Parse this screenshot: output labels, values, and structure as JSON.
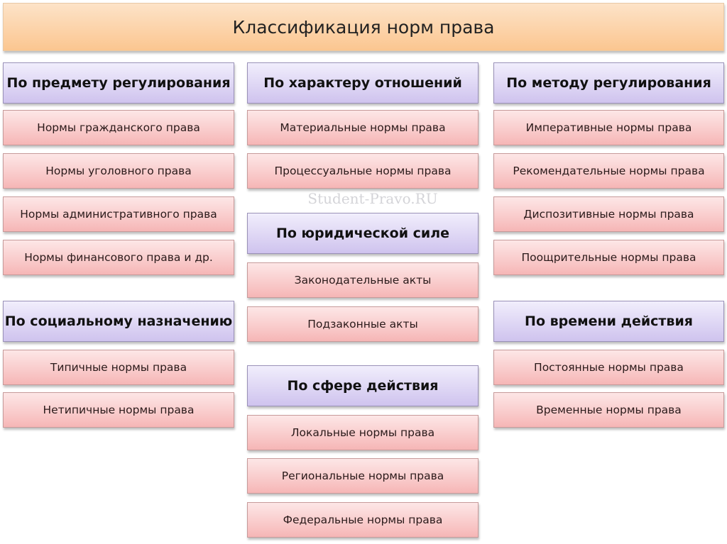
{
  "title": "Классификация норм права",
  "watermark": "Student-Pravo.RU",
  "groups": {
    "subject": {
      "header": "По предмету регулирования",
      "items": [
        "Нормы гражданского права",
        "Нормы уголовного права",
        "Нормы административного права",
        "Нормы финансового права и др."
      ]
    },
    "social": {
      "header": "По социальному назначению",
      "items": [
        "Типичные нормы права",
        "Нетипичные нормы права"
      ]
    },
    "relations": {
      "header": "По характеру отношений",
      "items": [
        "Материальные нормы права",
        "Процессуальные нормы права"
      ]
    },
    "legal_force": {
      "header": "По юридической силе",
      "items": [
        "Законодательные акты",
        "Подзаконные акты"
      ]
    },
    "sphere": {
      "header": "По сфере действия",
      "items": [
        "Локальные нормы права",
        "Региональные нормы права",
        "Федеральные нормы права"
      ]
    },
    "method": {
      "header": "По методу регулирования",
      "items": [
        "Императивные нормы права",
        "Рекомендательные нормы права",
        "Диспозитивные нормы права",
        "Поощрительные нормы права"
      ]
    },
    "time": {
      "header": "По времени действия",
      "items": [
        "Постоянные нормы права",
        "Временные нормы права"
      ]
    }
  },
  "colors": {
    "title": "#fbc690",
    "header": "#d8cdf2",
    "item": "#f8c4c4"
  }
}
